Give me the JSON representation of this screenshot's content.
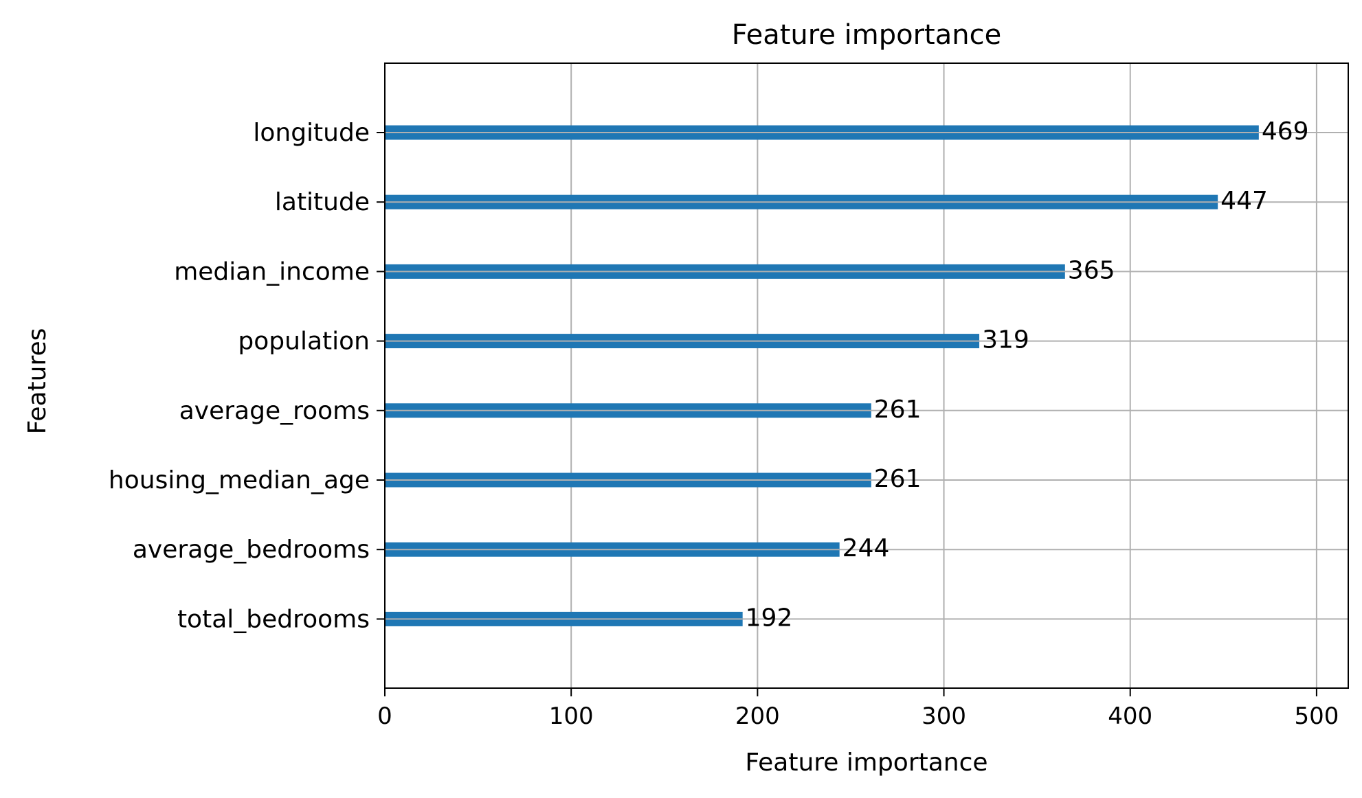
{
  "colors": {
    "bar": "#1f77b4",
    "grid": "#b0b0b0",
    "axis": "#000000",
    "text": "#000000",
    "background": "#ffffff"
  },
  "chart_data": {
    "type": "bar",
    "orientation": "horizontal",
    "title": "Feature importance",
    "xlabel": "Feature importance",
    "ylabel": "Features",
    "xlim": [
      0,
      517
    ],
    "xticks": [
      0,
      100,
      200,
      300,
      400,
      500
    ],
    "grid": true,
    "categories": [
      "longitude",
      "latitude",
      "median_income",
      "population",
      "average_rooms",
      "housing_median_age",
      "average_bedrooms",
      "total_bedrooms"
    ],
    "values": [
      469,
      447,
      365,
      319,
      261,
      261,
      244,
      192
    ],
    "data_labels": [
      "469",
      "447",
      "365",
      "319",
      "261",
      "261",
      "244",
      "192"
    ]
  }
}
